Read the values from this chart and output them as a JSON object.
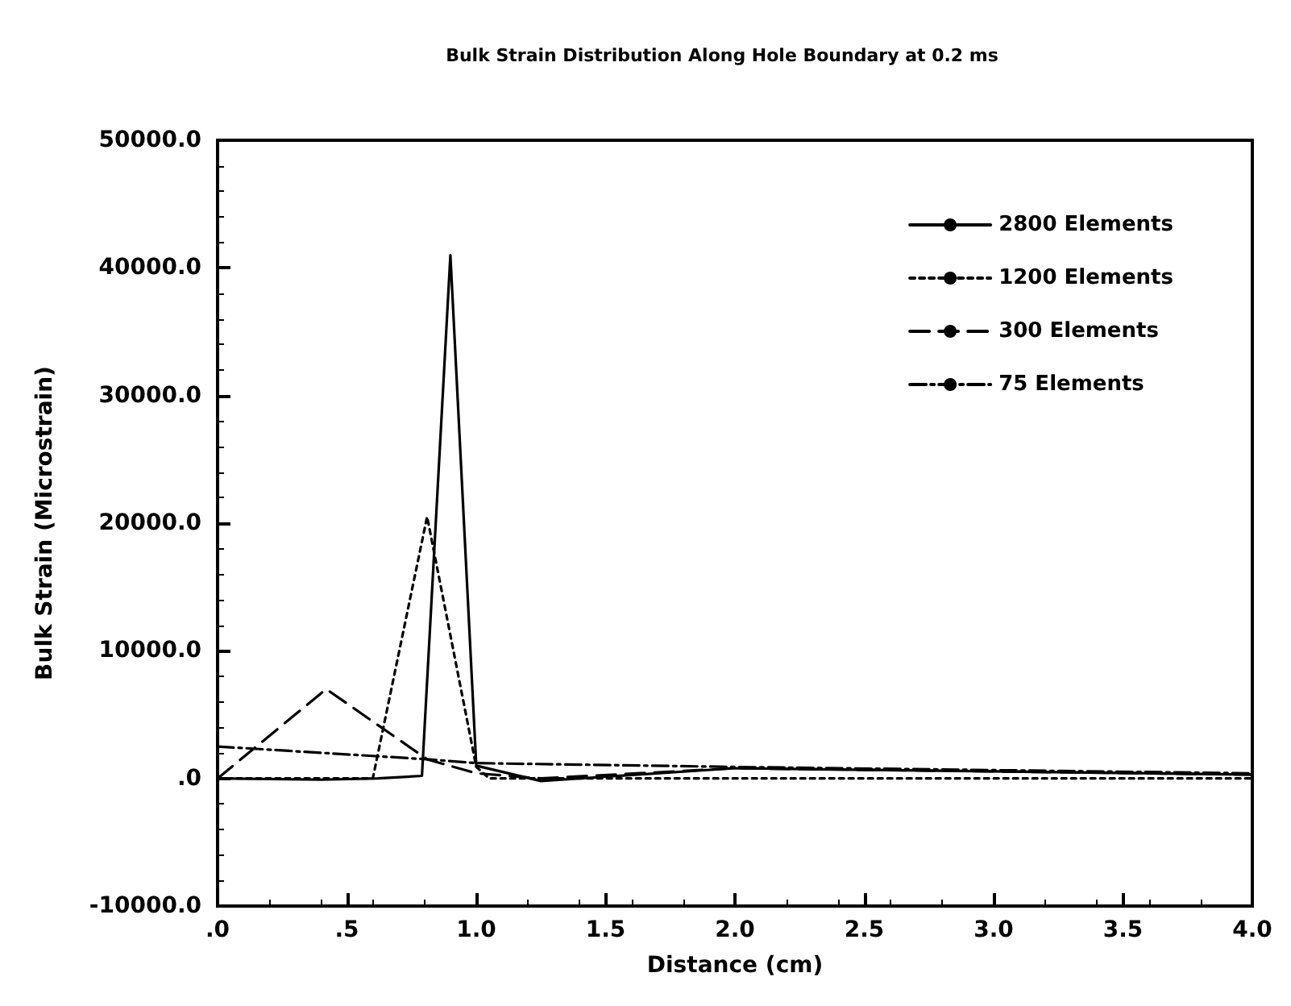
{
  "chart_data": {
    "type": "line",
    "title": "Bulk Strain Distribution Along Hole Boundary at 0.2 ms",
    "xlabel": "Distance (cm)",
    "ylabel": "Bulk Strain (Microstrain)",
    "xlim": [
      0,
      4
    ],
    "ylim": [
      -10000,
      50000
    ],
    "xticks": [
      {
        "value": 0,
        "label": ".0"
      },
      {
        "value": 0.5,
        "label": ".5"
      },
      {
        "value": 1,
        "label": "1.0"
      },
      {
        "value": 1.5,
        "label": "1.5"
      },
      {
        "value": 2,
        "label": "2.0"
      },
      {
        "value": 2.5,
        "label": "2.5"
      },
      {
        "value": 3,
        "label": "3.0"
      },
      {
        "value": 3.5,
        "label": "3.5"
      },
      {
        "value": 4,
        "label": "4.0"
      }
    ],
    "yticks": [
      {
        "value": -10000,
        "label": "-10000.0"
      },
      {
        "value": 0,
        "label": ".0"
      },
      {
        "value": 10000,
        "label": "10000.0"
      },
      {
        "value": 20000,
        "label": "20000.0"
      },
      {
        "value": 30000,
        "label": "30000.0"
      },
      {
        "value": 40000,
        "label": "40000.0"
      },
      {
        "value": 50000,
        "label": "50000.0"
      }
    ],
    "grid": false,
    "legend": "top right",
    "marker": "none",
    "series": [
      {
        "name": "2800 Elements",
        "color": "#000000",
        "line_style": "solid",
        "x": [
          0,
          0.4,
          0.62,
          0.79,
          0.9,
          1.0,
          1.25,
          2.0,
          4.0
        ],
        "values": [
          0,
          -100,
          0,
          200,
          41000,
          1000,
          -200,
          800,
          300
        ]
      },
      {
        "name": "1200 Elements",
        "color": "#000000",
        "line_style": "dotted",
        "x": [
          0,
          0.6,
          0.81,
          1.0,
          1.05,
          4.0
        ],
        "values": [
          0,
          0,
          20500,
          900,
          0,
          0
        ]
      },
      {
        "name": "300 Elements",
        "color": "#000000",
        "line_style": "dashed",
        "x": [
          0,
          0.42,
          0.81,
          1.0,
          1.25,
          2.0,
          4.0
        ],
        "values": [
          0,
          7000,
          1500,
          400,
          0,
          800,
          300
        ]
      },
      {
        "name": "75 Elements",
        "color": "#000000",
        "line_style": "dashdot",
        "x": [
          0,
          0.81,
          1.0,
          2.0,
          4.0
        ],
        "values": [
          2500,
          1500,
          1200,
          900,
          400
        ]
      }
    ]
  }
}
